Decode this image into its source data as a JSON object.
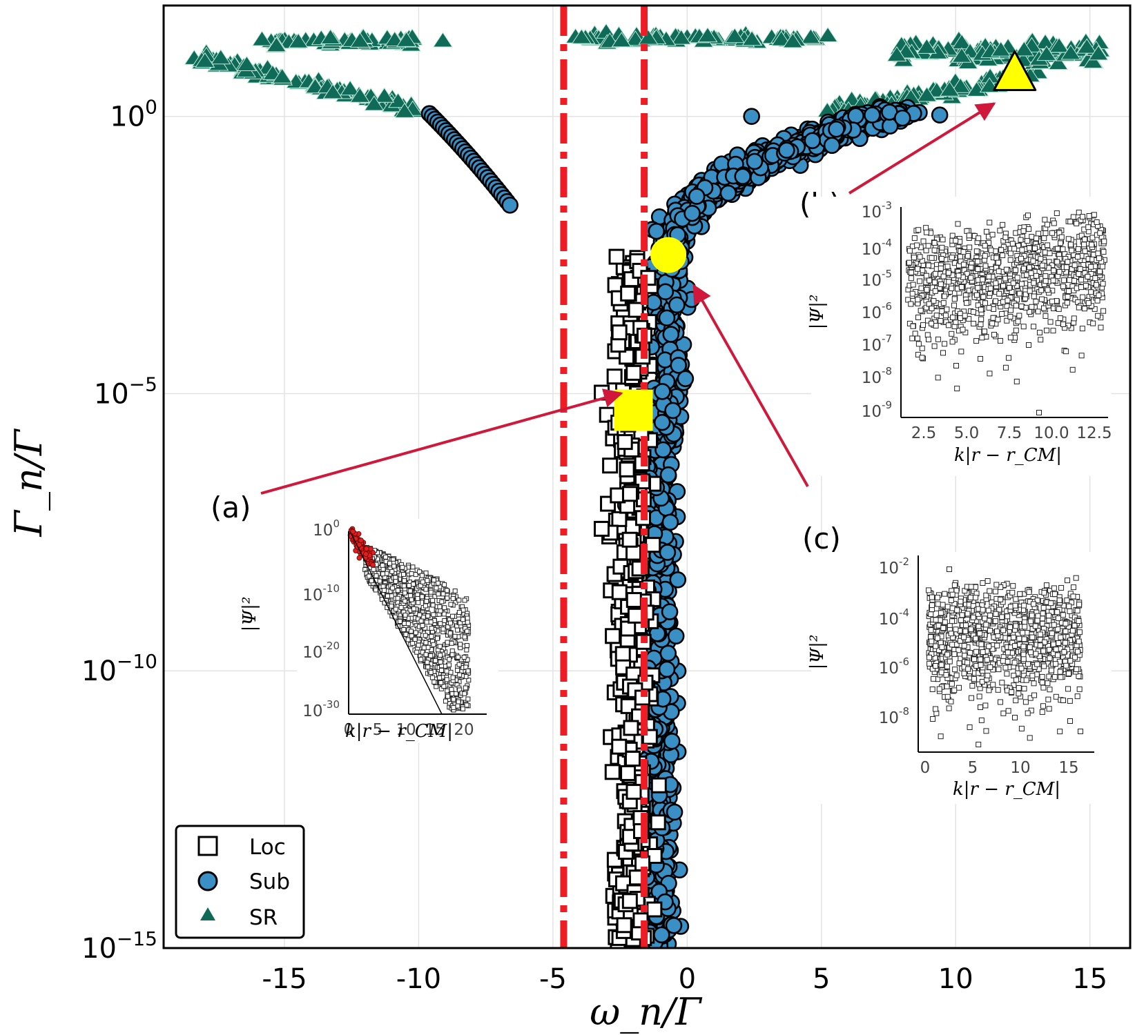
{
  "chart_data": {
    "type": "scatter",
    "xlabel": "ω_n/Γ",
    "ylabel": "Γ_n/Γ",
    "xlim": [
      -19.5,
      16.5
    ],
    "ylim_log10": [
      -15,
      2
    ],
    "x_ticks": [
      "-15",
      "-10",
      "-5",
      "0",
      "5",
      "10",
      "15"
    ],
    "y_ticks": [
      {
        "base": "10",
        "exp": "0",
        "value": 0
      },
      {
        "base": "10",
        "exp": "−5",
        "value": -5
      },
      {
        "base": "10",
        "exp": "−10",
        "value": -10
      },
      {
        "base": "10",
        "exp": "−15",
        "value": -15
      }
    ],
    "grid": true,
    "legend_position": "bottom-left",
    "legend": [
      {
        "label": "Loc",
        "marker": "square"
      },
      {
        "label": "Sub",
        "marker": "circle"
      },
      {
        "label": "SR",
        "marker": "triangle"
      }
    ],
    "vertical_lines": [
      {
        "x": -4.6,
        "style": "dash-dot",
        "color": "#ee1c25"
      },
      {
        "x": -1.6,
        "style": "dash-dot",
        "color": "#ee1c25"
      }
    ],
    "series": [
      {
        "name": "Loc",
        "description": "localized modes near ω≈-2.5 to -1.2, Γ from 1e-3 to 1e-15"
      },
      {
        "name": "Sub",
        "description": "subradiant modes, curve from (-0.5,1e-15) to (8,1e0); branch (-9.5,1e0) to (-6.5,1e-1.4)"
      },
      {
        "name": "SR",
        "description": "superradiant modes Γ≈1e0 to 1e1.3"
      }
    ],
    "highlighted_points": [
      {
        "id": "a",
        "marker": "square",
        "x": -2.0,
        "log10_y": -5.3
      },
      {
        "id": "b",
        "marker": "triangle",
        "x": 12.2,
        "log10_y": 0.7
      },
      {
        "id": "c",
        "marker": "circle",
        "x": -0.7,
        "log10_y": -2.5
      }
    ],
    "annotations": [
      "(a)",
      "(b)",
      "(c)"
    ],
    "insets": [
      {
        "id": "inset-a",
        "xlabel": "k|r − r_CM|",
        "ylabel": "|Ψ|²",
        "x_ticks": [
          "0",
          "5",
          "10",
          "15",
          "20"
        ],
        "y_ticks": [
          {
            "base": "10",
            "exp": "0"
          },
          {
            "base": "10",
            "exp": "-10"
          },
          {
            "base": "10",
            "exp": "-20"
          },
          {
            "base": "10",
            "exp": "-30"
          }
        ]
      },
      {
        "id": "inset-b",
        "xlabel": "k|r − r_CM|",
        "ylabel": "|Ψ|²",
        "x_ticks": [
          "2.5",
          "5.0",
          "7.5",
          "10.0",
          "12.5"
        ],
        "y_ticks": [
          {
            "base": "10",
            "exp": "-3"
          },
          {
            "base": "10",
            "exp": "-4"
          },
          {
            "base": "10",
            "exp": "-5"
          },
          {
            "base": "10",
            "exp": "-6"
          },
          {
            "base": "10",
            "exp": "-7"
          },
          {
            "base": "10",
            "exp": "-8"
          },
          {
            "base": "10",
            "exp": "-9"
          }
        ]
      },
      {
        "id": "inset-c",
        "xlabel": "k|r − r_CM|",
        "ylabel": "|Ψ|²",
        "x_ticks": [
          "0",
          "5",
          "10",
          "15"
        ],
        "y_ticks": [
          {
            "base": "10",
            "exp": "-2"
          },
          {
            "base": "10",
            "exp": "-4"
          },
          {
            "base": "10",
            "exp": "-6"
          },
          {
            "base": "10",
            "exp": "-8"
          }
        ]
      }
    ]
  },
  "colors": {
    "sub": "#3a8fc4",
    "sr": "#0f6b58",
    "highlight": "#ffff00",
    "line": "#ee1c25",
    "arrow": "#d0193a",
    "inset_red": "#e02020"
  }
}
